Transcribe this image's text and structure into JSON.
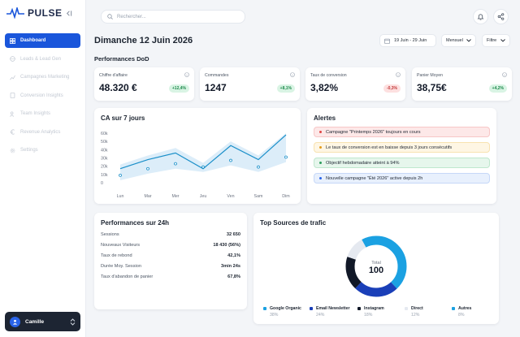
{
  "app": {
    "name": "PULSE",
    "brand_color": "#1a56db"
  },
  "sidebar": {
    "items": [
      {
        "label": "Dashboard",
        "icon": "dashboard-icon",
        "active": true
      },
      {
        "label": "Leads & Lead Gen",
        "icon": "globe-icon",
        "active": false
      },
      {
        "label": "Campagnes Marketing",
        "icon": "chart-line-icon",
        "active": false
      },
      {
        "label": "Conversion Insights",
        "icon": "document-icon",
        "active": false
      },
      {
        "label": "Team Insights",
        "icon": "users-icon",
        "active": false
      },
      {
        "label": "Revenue Analytics",
        "icon": "euro-icon",
        "active": false
      },
      {
        "label": "Settings",
        "icon": "gear-icon",
        "active": false
      }
    ],
    "user": {
      "name": "Camille"
    }
  },
  "topbar": {
    "search_placeholder": "Rechercher..."
  },
  "header": {
    "title": "Dimanche 12 Juin 2026",
    "date_range": "19 Juin - 29 Juin",
    "period": "Mensuel",
    "filter": "Filtre"
  },
  "kpi_section_title": "Performances DoD",
  "kpis": [
    {
      "label": "Chiffre d'affaire",
      "value": "48.320 €",
      "delta": "+12,4%",
      "trend": "up"
    },
    {
      "label": "Commandes",
      "value": "1247",
      "delta": "+8,1%",
      "trend": "up"
    },
    {
      "label": "Taux de conversion",
      "value": "3,82%",
      "delta": "-0,3%",
      "trend": "down"
    },
    {
      "label": "Panier Moyen",
      "value": "38,75€",
      "delta": "+4,2%",
      "trend": "up"
    }
  ],
  "chart_data": {
    "type": "line",
    "title": "CA sur 7 jours",
    "categories": [
      "Lun",
      "Mar",
      "Mer",
      "Jeu",
      "Ven",
      "Sam",
      "Dim"
    ],
    "yticks": [
      "0",
      "10k",
      "20k",
      "30k",
      "40k",
      "50k",
      "60k"
    ],
    "ylim": [
      0,
      60000
    ],
    "series": [
      {
        "kind": "line",
        "values": [
          17000,
          28000,
          36000,
          17000,
          45000,
          28000,
          58000
        ]
      },
      {
        "kind": "points",
        "values": [
          9000,
          17000,
          23000,
          19000,
          27000,
          19000,
          31000
        ]
      },
      {
        "kind": "band_upper",
        "values": [
          22000,
          33000,
          42000,
          24000,
          50000,
          33000,
          60000
        ]
      }
    ],
    "colors": {
      "line": "#1a8fc9",
      "band": "#d6eaf8"
    },
    "grid": false
  },
  "alerts": {
    "title": "Alertes",
    "items": [
      {
        "text": "Campagne \"Printemps 2026\" toujours en cours",
        "bg": "#fde8e8",
        "border": "#f7c7c7",
        "dot": "#e04444"
      },
      {
        "text": "Le taux de conversion est en baisse depuis 3 jours consécutifs",
        "bg": "#fef6e4",
        "border": "#f8e2b0",
        "dot": "#e39b1c"
      },
      {
        "text": "Objectif hebdomadaire atteint à 94%",
        "bg": "#e6f6ec",
        "border": "#bfe7cd",
        "dot": "#2a9d5c"
      },
      {
        "text": "Nouvelle campagne \"Été 2026\" active depuis 2h",
        "bg": "#e8f0fd",
        "border": "#c6d8f8",
        "dot": "#2a64e8"
      }
    ]
  },
  "perf24": {
    "title": "Performances sur 24h",
    "rows": [
      {
        "label": "Sessions",
        "value": "32 650"
      },
      {
        "label": "Nouveaux Visiteurs",
        "value": "18 430 (56%)"
      },
      {
        "label": "Taux de rebond",
        "value": "42,1%"
      },
      {
        "label": "Durée Moy. Session",
        "value": "3min 24s"
      },
      {
        "label": "Taux d'abandon de panier",
        "value": "67,8%"
      }
    ]
  },
  "traffic": {
    "title": "Top Sources de trafic",
    "total_label": "Total",
    "total_value": "100",
    "sources": [
      {
        "name": "Google Organic",
        "pct": "38%",
        "value": 38,
        "color": "#1ba1e2"
      },
      {
        "name": "Email Newsletter",
        "pct": "24%",
        "value": 24,
        "color": "#1a3fb8"
      },
      {
        "name": "Instagram",
        "pct": "18%",
        "value": 18,
        "color": "#111827"
      },
      {
        "name": "Direct",
        "pct": "12%",
        "value": 12,
        "color": "#e5e9f0"
      },
      {
        "name": "Autres",
        "pct": "8%",
        "value": 8,
        "color": "#1ba1e2"
      }
    ]
  }
}
